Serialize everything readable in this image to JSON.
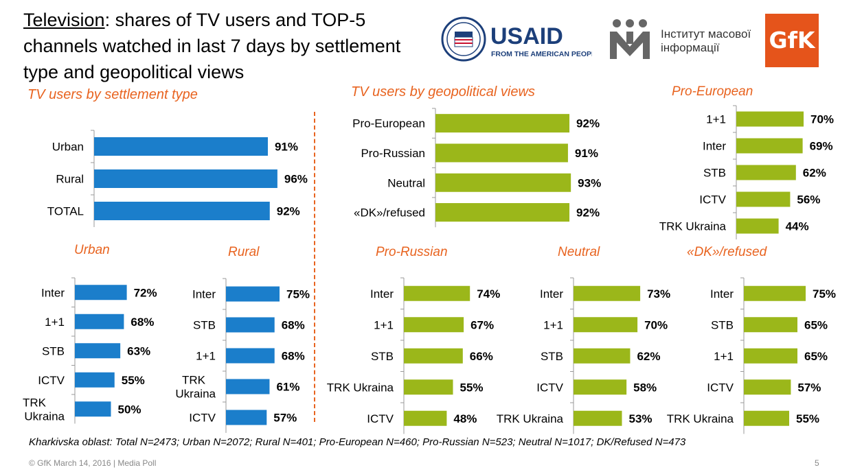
{
  "header": {
    "title_underlined": "Television",
    "title_rest": ": shares of TV users and TOP-5 channels watched in last 7 days by settlement type and geopolitical views"
  },
  "logos": {
    "usaid_main": "USAID",
    "usaid_tagline": "FROM THE AMERICAN PEOPLE",
    "imi_line1": "Інститут масової",
    "imi_line2": "інформації",
    "gfk": "GfK"
  },
  "colors": {
    "blue": "#1B7ECB",
    "green": "#9BB71A",
    "orange": "#E8631F"
  },
  "chart_data": [
    {
      "id": "settlement",
      "type": "bar",
      "orientation": "horizontal",
      "title": "TV users by settlement type",
      "categories": [
        "Urban",
        "Rural",
        "TOTAL"
      ],
      "values": [
        91,
        96,
        92
      ],
      "value_labels": [
        "91%",
        "96%",
        "92%"
      ],
      "xlim": [
        0,
        100
      ],
      "color": "#1B7ECB"
    },
    {
      "id": "geopolitical",
      "type": "bar",
      "orientation": "horizontal",
      "title": "TV users by geopolitical views",
      "categories": [
        "Pro-European",
        "Pro-Russian",
        "Neutral",
        "«DK»/refused"
      ],
      "values": [
        92,
        91,
        93,
        92
      ],
      "value_labels": [
        "92%",
        "91%",
        "93%",
        "92%"
      ],
      "xlim": [
        0,
        100
      ],
      "color": "#9BB71A"
    },
    {
      "id": "pro_european",
      "type": "bar",
      "orientation": "horizontal",
      "title": "Pro-European",
      "categories": [
        "1+1",
        "Inter",
        "STB",
        "ICTV",
        "TRK Ukraina"
      ],
      "values": [
        70,
        69,
        62,
        56,
        44
      ],
      "value_labels": [
        "70%",
        "69%",
        "62%",
        "56%",
        "44%"
      ],
      "xlim": [
        0,
        100
      ],
      "color": "#9BB71A"
    },
    {
      "id": "urban",
      "type": "bar",
      "orientation": "horizontal",
      "title": "Urban",
      "categories": [
        "Inter",
        "1+1",
        "STB",
        "ICTV",
        "TRK Ukraina"
      ],
      "values": [
        72,
        68,
        63,
        55,
        50
      ],
      "value_labels": [
        "72%",
        "68%",
        "63%",
        "55%",
        "50%"
      ],
      "xlim": [
        0,
        100
      ],
      "color": "#1B7ECB"
    },
    {
      "id": "rural",
      "type": "bar",
      "orientation": "horizontal",
      "title": "Rural",
      "categories": [
        "Inter",
        "STB",
        "1+1",
        "TRK Ukraina",
        "ICTV"
      ],
      "values": [
        75,
        68,
        68,
        61,
        57
      ],
      "value_labels": [
        "75%",
        "68%",
        "68%",
        "61%",
        "57%"
      ],
      "xlim": [
        0,
        100
      ],
      "color": "#1B7ECB"
    },
    {
      "id": "pro_russian",
      "type": "bar",
      "orientation": "horizontal",
      "title": "Pro-Russian",
      "categories": [
        "Inter",
        "1+1",
        "STB",
        "TRK Ukraina",
        "ICTV"
      ],
      "values": [
        74,
        67,
        66,
        55,
        48
      ],
      "value_labels": [
        "74%",
        "67%",
        "66%",
        "55%",
        "48%"
      ],
      "xlim": [
        0,
        100
      ],
      "color": "#9BB71A"
    },
    {
      "id": "neutral",
      "type": "bar",
      "orientation": "horizontal",
      "title": "Neutral",
      "categories": [
        "Inter",
        "1+1",
        "STB",
        "ICTV",
        "TRK Ukraina"
      ],
      "values": [
        73,
        70,
        62,
        58,
        53
      ],
      "value_labels": [
        "73%",
        "70%",
        "62%",
        "58%",
        "53%"
      ],
      "xlim": [
        0,
        100
      ],
      "color": "#9BB71A"
    },
    {
      "id": "dk_refused",
      "type": "bar",
      "orientation": "horizontal",
      "title": "«DK»/refused",
      "categories": [
        "Inter",
        "STB",
        "1+1",
        "ICTV",
        "TRK Ukraina"
      ],
      "values": [
        75,
        65,
        65,
        57,
        55
      ],
      "value_labels": [
        "75%",
        "65%",
        "65%",
        "57%",
        "55%"
      ],
      "xlim": [
        0,
        100
      ],
      "color": "#9BB71A"
    }
  ],
  "footnote": "Kharkivska oblast: Total N=2473; Urban N=2072; Rural N=401; Pro-European N=460; Pro-Russian N=523; Neutral N=1017; DK/Refused N=473",
  "footer": {
    "copyright": "© GfK March 14, 2016 | Media Poll",
    "page_number": "5"
  }
}
